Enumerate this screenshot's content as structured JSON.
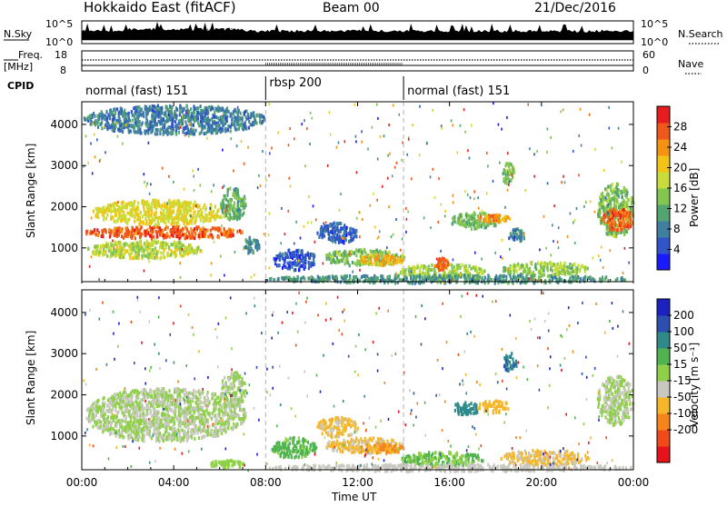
{
  "header": {
    "site": "Hokkaido East (fitACF)",
    "beam": "Beam 00",
    "date": "21/Dec/2016"
  },
  "top_strip": {
    "nsky_label": "N.Sky",
    "nsky_ticks": [
      "10^5",
      "10^0"
    ],
    "nsearch_label": "N.Search",
    "nsearch_ticks": [
      "10^5",
      "10^0"
    ],
    "freq_label_1": "Freq.",
    "freq_label_2": "[MHz]",
    "freq_ticks": [
      "18",
      "8"
    ],
    "nave_label": "Nave",
    "nave_ticks": [
      "60",
      "0"
    ],
    "cpid_label": "CPID",
    "cpid_segments": [
      {
        "label": "normal (fast) 151",
        "start_h": 0,
        "end_h": 8
      },
      {
        "label": "rbsp 200",
        "start_h": 8,
        "end_h": 14
      },
      {
        "label": "normal (fast) 151",
        "start_h": 14,
        "end_h": 24
      }
    ]
  },
  "chart_data": [
    {
      "type": "heatmap",
      "panel": "power",
      "ylabel": "Slant Range [km]",
      "xlabel": "",
      "x_range_h": [
        0,
        24
      ],
      "ylim": [
        180,
        4550
      ],
      "yticks": [
        "1000",
        "2000",
        "3000",
        "4000"
      ],
      "yticks_values": [
        1000,
        2000,
        3000,
        4000
      ],
      "colorbar": {
        "label": "Power [dB]",
        "ticks": [
          "4",
          "8",
          "12",
          "16",
          "20",
          "24",
          "28"
        ],
        "tick_values": [
          4,
          8,
          12,
          16,
          20,
          24,
          28
        ],
        "range": [
          0,
          32
        ],
        "colors": [
          "#1a1aff",
          "#2f55c8",
          "#3f7f9f",
          "#54a470",
          "#82c64f",
          "#c8dd3b",
          "#f2c416",
          "#f59212",
          "#f0571a",
          "#e81c1c"
        ]
      },
      "blobs": [
        {
          "t0": 0.1,
          "t1": 7.1,
          "r0": 1260,
          "r1": 1560,
          "v": 27
        },
        {
          "t0": 0.4,
          "t1": 6.3,
          "r0": 1600,
          "r1": 2200,
          "v": 19
        },
        {
          "t0": 0.2,
          "t1": 5.2,
          "r0": 780,
          "r1": 1220,
          "v": 17
        },
        {
          "t0": 6.0,
          "t1": 7.1,
          "r0": 1700,
          "r1": 2500,
          "v": 12
        },
        {
          "t0": 7.0,
          "t1": 7.7,
          "r0": 900,
          "r1": 1300,
          "v": 9
        },
        {
          "t0": 10.2,
          "t1": 12.0,
          "r0": 1150,
          "r1": 1650,
          "v": 6
        },
        {
          "t0": 8.3,
          "t1": 10.2,
          "r0": 500,
          "r1": 1000,
          "v": 5
        },
        {
          "t0": 10.5,
          "t1": 14.0,
          "r0": 600,
          "r1": 1000,
          "v": 14
        },
        {
          "t0": 12.0,
          "t1": 14.0,
          "r0": 620,
          "r1": 880,
          "v": 22
        },
        {
          "t0": 13.8,
          "t1": 17.5,
          "r0": 300,
          "r1": 650,
          "v": 16
        },
        {
          "t0": 15.3,
          "t1": 15.9,
          "r0": 500,
          "r1": 800,
          "v": 26
        },
        {
          "t0": 16.0,
          "t1": 18.2,
          "r0": 1500,
          "r1": 1900,
          "v": 13
        },
        {
          "t0": 17.2,
          "t1": 18.6,
          "r0": 1650,
          "r1": 1850,
          "v": 24
        },
        {
          "t0": 18.5,
          "t1": 19.3,
          "r0": 1200,
          "r1": 1500,
          "v": 9
        },
        {
          "t0": 18.2,
          "t1": 22.0,
          "r0": 350,
          "r1": 700,
          "v": 15
        },
        {
          "t0": 22.4,
          "t1": 24.0,
          "r0": 1300,
          "r1": 2600,
          "v": 14
        },
        {
          "t0": 22.6,
          "t1": 24.0,
          "r0": 1450,
          "r1": 2000,
          "v": 27
        },
        {
          "t0": 8.0,
          "t1": 24.0,
          "r0": 180,
          "r1": 380,
          "v": 10
        },
        {
          "t0": 18.2,
          "t1": 18.8,
          "r0": 2600,
          "r1": 3100,
          "v": 14
        },
        {
          "t0": 0.0,
          "t1": 8.0,
          "r0": 3800,
          "r1": 4500,
          "v": 8
        }
      ]
    },
    {
      "type": "heatmap",
      "panel": "velocity",
      "ylabel": "Slant Range [km]",
      "xlabel": "Time UT",
      "x_range_h": [
        0,
        24
      ],
      "xticks": [
        "00:00",
        "04:00",
        "08:00",
        "12:00",
        "16:00",
        "20:00",
        "00:00"
      ],
      "xticks_values": [
        0,
        4,
        8,
        12,
        16,
        20,
        24
      ],
      "ylim": [
        180,
        4550
      ],
      "yticks": [
        "1000",
        "2000",
        "3000",
        "4000"
      ],
      "yticks_values": [
        1000,
        2000,
        3000,
        4000
      ],
      "colorbar": {
        "label": "Velocity [m s⁻¹]",
        "ticks": [
          "200",
          "100",
          "50",
          "15",
          "-15",
          "-50",
          "-100",
          "-200"
        ],
        "tick_values": [
          200,
          100,
          50,
          15,
          -15,
          -50,
          -100,
          -200
        ],
        "range": [
          -250,
          250
        ],
        "colors": [
          "#e8121a",
          "#f04a1a",
          "#f5841a",
          "#f5b728",
          "#c8c8c0",
          "#8ed047",
          "#4fb44f",
          "#2f8a8a",
          "#2d4fb0",
          "#1c22c0"
        ]
      },
      "blobs": [
        {
          "t0": 0.1,
          "t1": 7.1,
          "r0": 900,
          "r1": 2200,
          "v": 0
        },
        {
          "t0": 6.0,
          "t1": 7.1,
          "r0": 1700,
          "r1": 2600,
          "v": 0
        },
        {
          "t0": 8.2,
          "t1": 10.2,
          "r0": 500,
          "r1": 1000,
          "v": 60
        },
        {
          "t0": 10.2,
          "t1": 12.0,
          "r0": 1000,
          "r1": 1500,
          "v": -60
        },
        {
          "t0": 10.5,
          "t1": 14.0,
          "r0": 620,
          "r1": 1000,
          "v": -60
        },
        {
          "t0": 12.0,
          "t1": 14.0,
          "r0": 620,
          "r1": 850,
          "v": -110
        },
        {
          "t0": 13.8,
          "t1": 17.5,
          "r0": 300,
          "r1": 650,
          "v": 50
        },
        {
          "t0": 16.0,
          "t1": 17.3,
          "r0": 1550,
          "r1": 1850,
          "v": 120
        },
        {
          "t0": 17.2,
          "t1": 18.6,
          "r0": 1600,
          "r1": 1900,
          "v": -70
        },
        {
          "t0": 18.2,
          "t1": 22.0,
          "r0": 320,
          "r1": 700,
          "v": -60
        },
        {
          "t0": 22.4,
          "t1": 24.0,
          "r0": 1300,
          "r1": 2500,
          "v": 0
        },
        {
          "t0": 8.0,
          "t1": 24.0,
          "r0": 180,
          "r1": 350,
          "v": -30
        },
        {
          "t0": 18.3,
          "t1": 18.9,
          "r0": 2600,
          "r1": 3050,
          "v": 140
        },
        {
          "t0": 5.5,
          "t1": 7.0,
          "r0": 250,
          "r1": 450,
          "v": 30
        }
      ]
    }
  ]
}
